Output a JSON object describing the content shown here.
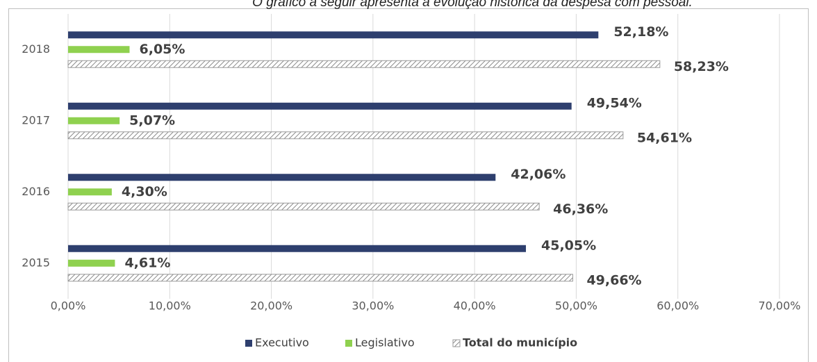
{
  "chart_data": {
    "type": "barh",
    "title": "O gráfico a seguir apresenta a evolução histórica da despesa com pessoal.",
    "categories": [
      "2018",
      "2017",
      "2016",
      "2015"
    ],
    "series": [
      {
        "name": "Executivo",
        "color": "#2e3f6e",
        "values": [
          52.18,
          49.54,
          42.06,
          45.05
        ],
        "value_labels": [
          "52,18%",
          "49,54%",
          "42,06%",
          "45,05%"
        ]
      },
      {
        "name": "Legislativo",
        "color": "#8fd14f",
        "values": [
          6.05,
          5.07,
          4.3,
          4.61
        ],
        "value_labels": [
          "6,05%",
          "5,07%",
          "4,30%",
          "4,61%"
        ]
      },
      {
        "name": "Total do município",
        "color": "#9a9a9a",
        "pattern": "hatch",
        "values": [
          58.23,
          54.61,
          46.36,
          49.66
        ],
        "value_labels": [
          "58,23%",
          "54,61%",
          "46,36%",
          "49,66%"
        ]
      }
    ],
    "xlim": [
      0,
      70
    ],
    "xticks": [
      {
        "value": 0,
        "label": "0,00%"
      },
      {
        "value": 10,
        "label": "10,00%"
      },
      {
        "value": 20,
        "label": "20,00%"
      },
      {
        "value": 30,
        "label": "30,00%"
      },
      {
        "value": 40,
        "label": "40,00%"
      },
      {
        "value": 50,
        "label": "50,00%"
      },
      {
        "value": 60,
        "label": "60,00%"
      },
      {
        "value": 70,
        "label": "70,00%"
      }
    ],
    "grid": true,
    "legend": "bottom"
  }
}
